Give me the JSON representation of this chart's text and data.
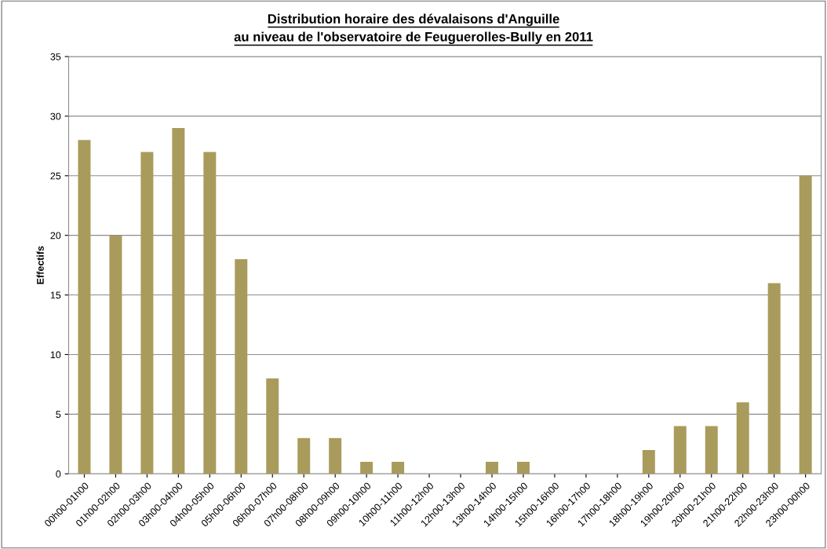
{
  "chart_data": {
    "type": "bar",
    "title": "Distribution horaire des dévalaisons d'Anguille\nau niveau de l'observatoire de Feuguerolles-Bully en 2011",
    "ylabel": "Effectifs",
    "categories": [
      "00h00-01h00",
      "01h00-02h00",
      "02h00-03h00",
      "03h00-04h00",
      "04h00-05h00",
      "05h00-06h00",
      "06h00-07h00",
      "07h00-08h00",
      "08h00-09h00",
      "09h00-10h00",
      "10h00-11h00",
      "11h00-12h00",
      "12h00-13h00",
      "13h00-14h00",
      "14h00-15h00",
      "15h00-16h00",
      "16h00-17h00",
      "17h00-18h00",
      "18h00-19h00",
      "19h00-20h00",
      "20h00-21h00",
      "21h00-22h00",
      "22h00-23h00",
      "23h00-00h00"
    ],
    "values": [
      28,
      20,
      27,
      29,
      27,
      18,
      8,
      3,
      3,
      1,
      1,
      0,
      0,
      1,
      1,
      0,
      0,
      0,
      2,
      4,
      4,
      6,
      16,
      25
    ],
    "color": "#a99b5c",
    "ylim": [
      0,
      35
    ],
    "yticks": [
      0,
      5,
      10,
      15,
      20,
      25,
      30,
      35
    ],
    "grid": "y",
    "legend": false
  }
}
